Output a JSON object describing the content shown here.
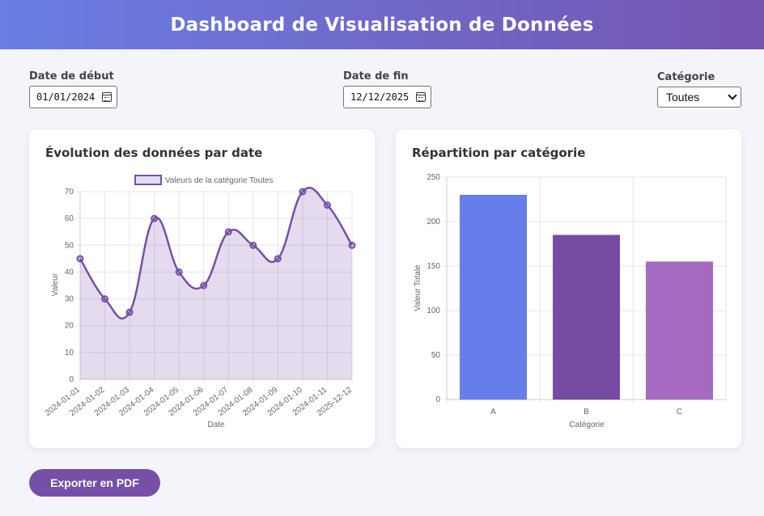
{
  "header": {
    "title": "Dashboard de Visualisation de Données"
  },
  "filters": {
    "start_label": "Date de début",
    "start_value": "01/01/2024",
    "end_label": "Date de fin",
    "end_value": "12/12/2025",
    "category_label": "Catégorie",
    "category_value": "Toutes"
  },
  "line_card": {
    "title": "Évolution des données par date"
  },
  "bar_card": {
    "title": "Répartition par catégorie"
  },
  "export_button": "Exporter en PDF",
  "colors": {
    "primary": "#7650a8",
    "accent": "#667eea",
    "header_start": "#6a7ee3",
    "header_end": "#7554b0"
  },
  "chart_data": [
    {
      "type": "line",
      "legend": "Valeurs de la catégorie Toutes",
      "xlabel": "Date",
      "ylabel": "Valeur",
      "categories": [
        "2024-01-01",
        "2024-01-02",
        "2024-01-03",
        "2024-01-04",
        "2024-01-05",
        "2024-01-06",
        "2024-01-07",
        "2024-01-08",
        "2024-01-09",
        "2024-01-10",
        "2024-01-11",
        "2025-12-12"
      ],
      "values": [
        45,
        30,
        25,
        60,
        40,
        35,
        55,
        50,
        45,
        70,
        65,
        50
      ],
      "ylim": [
        0,
        70
      ],
      "yticks": [
        0,
        10,
        20,
        30,
        40,
        50,
        60,
        70
      ],
      "grid": true,
      "fill": true,
      "color": "#7650a8"
    },
    {
      "type": "bar",
      "xlabel": "Catégorie",
      "ylabel": "Valeur Totale",
      "categories": [
        "A",
        "B",
        "C"
      ],
      "values": [
        230,
        185,
        155
      ],
      "ylim": [
        0,
        250
      ],
      "yticks": [
        0,
        50,
        100,
        150,
        200,
        250
      ],
      "grid": true,
      "colors": [
        "#667eea",
        "#764ba2",
        "#a66ac1"
      ]
    }
  ]
}
